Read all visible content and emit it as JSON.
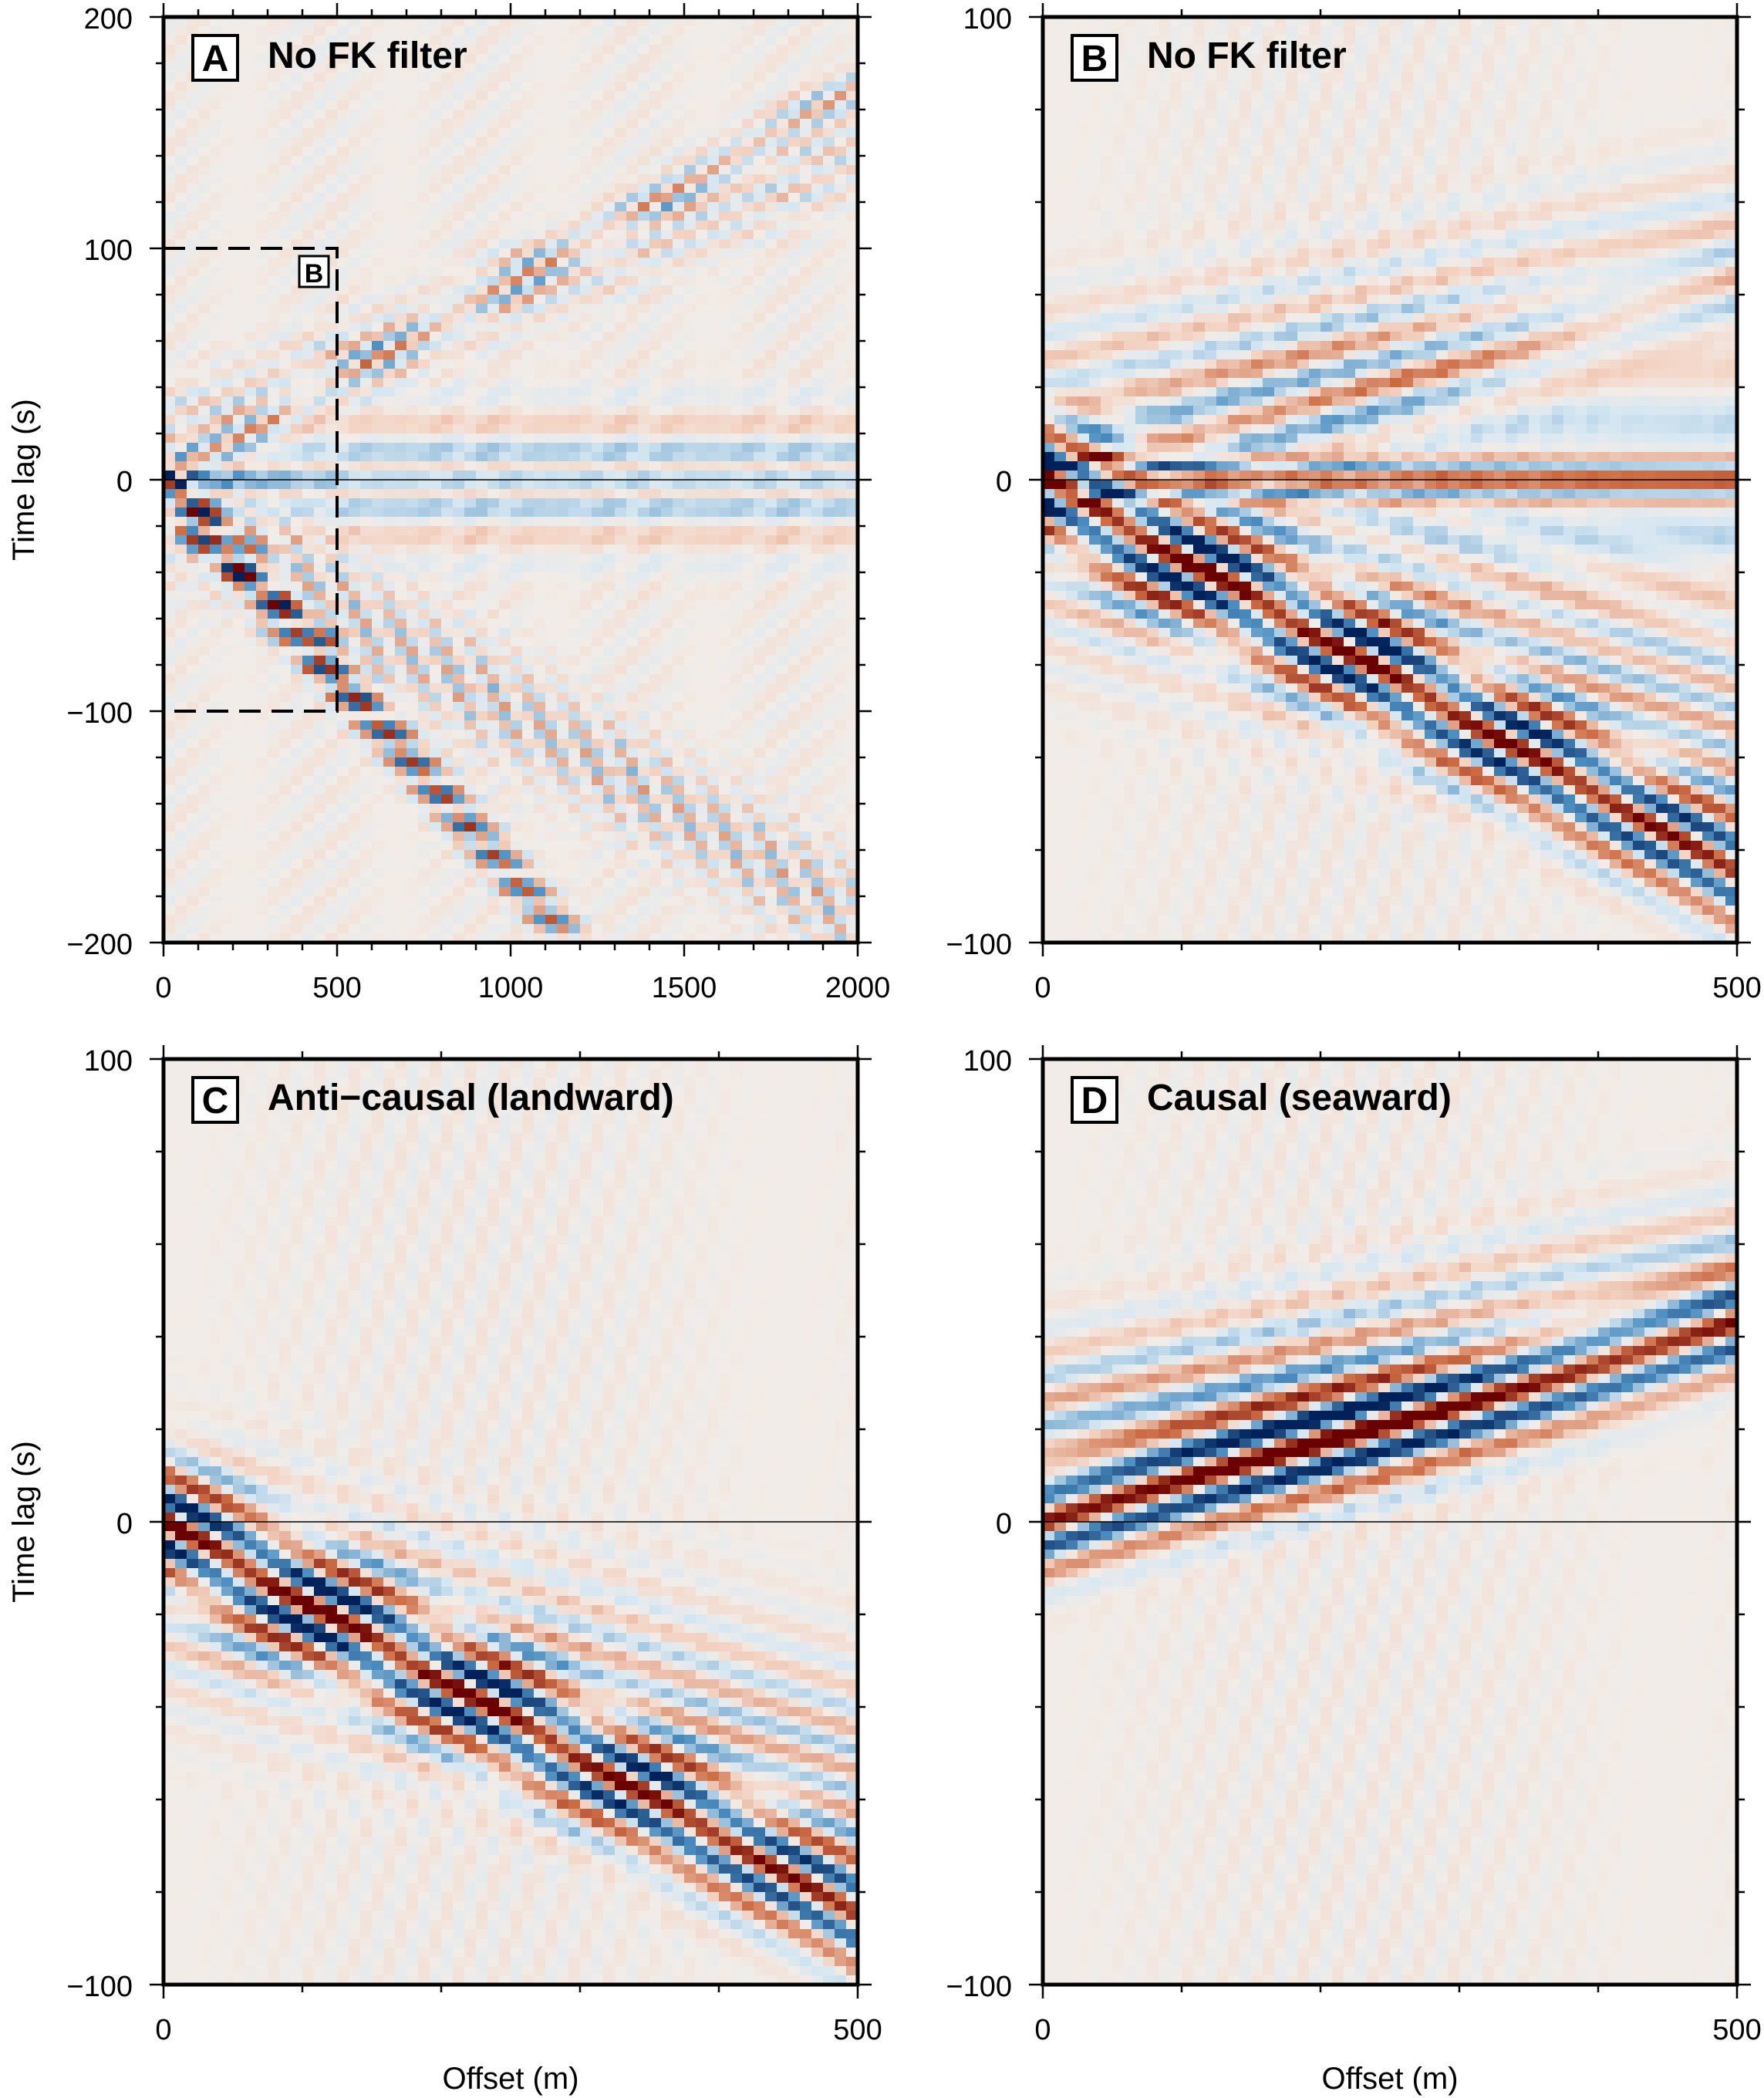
{
  "figure": {
    "colormap": {
      "negative": "#00215a",
      "mid_negative": "#4e8fc1",
      "light_negative": "#d6e7f2",
      "zero": "#f2ece8",
      "light_positive": "#f3d3c3",
      "mid_positive": "#cc6c45",
      "positive": "#6b0000"
    }
  },
  "chart_data": [
    {
      "type": "heatmap",
      "panel": "A",
      "title": "No FK filter",
      "xlabel": "",
      "ylabel": "Time lag (s)",
      "xlim": [
        0,
        2000
      ],
      "ylim": [
        -200,
        200
      ],
      "x_ticks": [
        "0",
        "500",
        "1000",
        "1500",
        "2000"
      ],
      "y_ticks": [
        "−200",
        "−100",
        "0",
        "100",
        "200"
      ],
      "inset_box": {
        "label": "B",
        "x_range": [
          0,
          500
        ],
        "y_range": [
          -100,
          100
        ]
      },
      "pattern": "symmetric",
      "x_scale": 4
    },
    {
      "type": "heatmap",
      "panel": "B",
      "title": "No FK filter",
      "xlabel": "",
      "ylabel": "",
      "xlim": [
        0,
        500
      ],
      "ylim": [
        -100,
        100
      ],
      "x_ticks": [
        "0",
        "500"
      ],
      "y_ticks": [
        "−100",
        "0",
        "100"
      ],
      "pattern": "symmetric",
      "x_scale": 1
    },
    {
      "type": "heatmap",
      "panel": "C",
      "title": "Anti−causal (landward)",
      "xlabel": "Offset (m)",
      "ylabel": "Time lag (s)",
      "xlim": [
        0,
        500
      ],
      "ylim": [
        -100,
        100
      ],
      "x_ticks": [
        "0",
        "500"
      ],
      "y_ticks": [
        "−100",
        "0",
        "100"
      ],
      "pattern": "negative",
      "x_scale": 1
    },
    {
      "type": "heatmap",
      "panel": "D",
      "title": "Causal (seaward)",
      "xlabel": "Offset (m)",
      "ylabel": "",
      "xlim": [
        0,
        500
      ],
      "ylim": [
        -100,
        100
      ],
      "x_ticks": [
        "0",
        "500"
      ],
      "y_ticks": [
        "−100",
        "0",
        "100"
      ],
      "pattern": "positive",
      "x_scale": 1
    }
  ]
}
